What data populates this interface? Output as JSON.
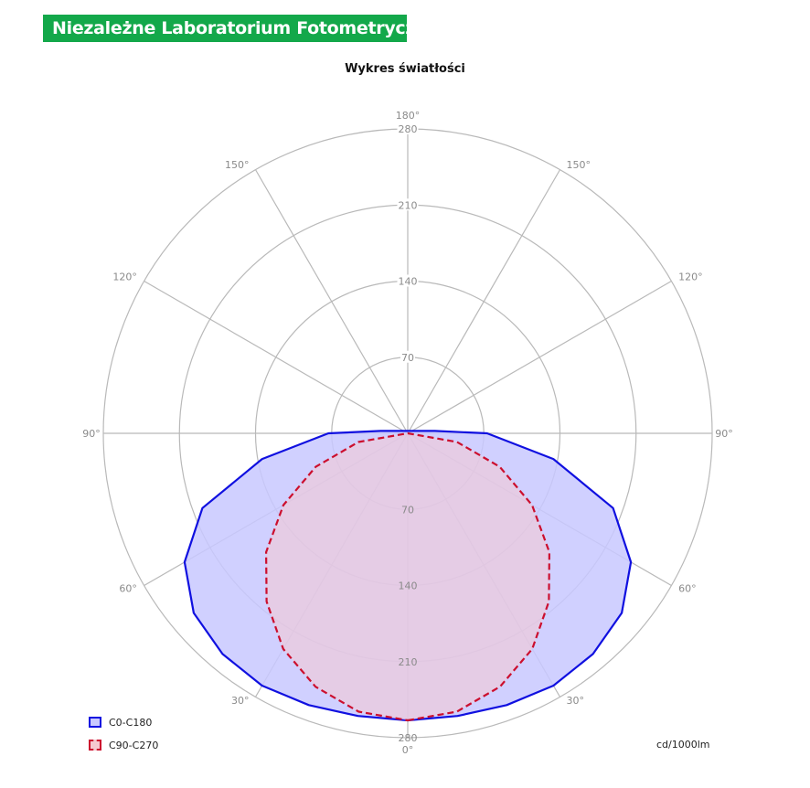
{
  "brand": {
    "name": "Niezależne Laboratorium Fotometryczne",
    "color": "#13a84a"
  },
  "chart_data": {
    "type": "polar",
    "title": "Wykres światłości",
    "units": "cd/1000lm",
    "r_max": 280,
    "r_ticks": [
      70,
      140,
      210,
      280
    ],
    "angle_tick_labels": [
      "0°",
      "30°",
      "60°",
      "90°",
      "120°",
      "150°",
      "180°"
    ],
    "grid": true,
    "legend_position": "bottom-left",
    "series": [
      {
        "name": "C0-C180",
        "color": "#1010e0",
        "fill": "#c8c8ff",
        "line_style": "solid",
        "gamma": [
          0,
          10,
          20,
          30,
          40,
          50,
          60,
          70,
          80,
          90,
          95
        ],
        "intensity": [
          264,
          264,
          266,
          268,
          265,
          257,
          237,
          201,
          136,
          73,
          25
        ]
      },
      {
        "name": "C90-C270",
        "color": "#cc0f2e",
        "fill": "#f5c9cf",
        "line_style": "dashed",
        "gamma": [
          0,
          10,
          20,
          30,
          40,
          50,
          60,
          70,
          80,
          90
        ],
        "intensity": [
          264,
          260,
          248,
          229,
          202,
          170,
          132,
          90,
          46,
          0
        ]
      }
    ]
  }
}
